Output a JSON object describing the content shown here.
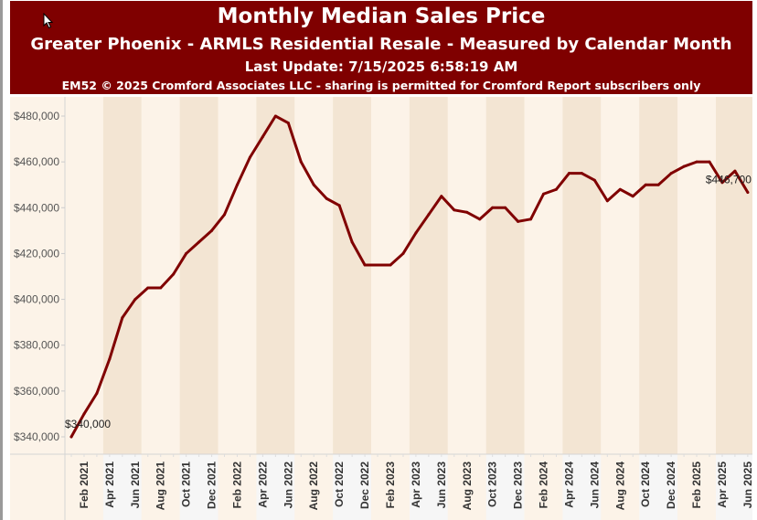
{
  "header": {
    "title": "Monthly Median Sales Price",
    "subtitle": "Greater Phoenix - ARMLS Residential Resale - Measured by Calendar Month",
    "last_update": "Last Update: 7/15/2025 6:58:19 AM",
    "copyright": "EM52 © 2025 Cromford Associates LLC - sharing is permitted for Cromford Report subscribers only"
  },
  "colors": {
    "header_bg": "#7f0000",
    "line": "#800000",
    "band_light": "#fcf3e8",
    "band_dark": "#f3e5d3"
  },
  "chart_data": {
    "type": "line",
    "title": "Monthly Median Sales Price",
    "xlabel": "",
    "ylabel": "",
    "ylim": [
      335000,
      485000
    ],
    "yticks": [
      340000,
      360000,
      380000,
      400000,
      420000,
      440000,
      460000,
      480000
    ],
    "ytick_labels": [
      "$340,000",
      "$360,000",
      "$380,000",
      "$400,000",
      "$420,000",
      "$440,000",
      "$460,000",
      "$480,000"
    ],
    "xtick_labels": [
      "Feb 2021",
      "Apr 2021",
      "Jun 2021",
      "Aug 2021",
      "Oct 2021",
      "Dec 2021",
      "Feb 2022",
      "Apr 2022",
      "Jun 2022",
      "Aug 2022",
      "Oct 2022",
      "Dec 2022",
      "Feb 2023",
      "Apr 2023",
      "Jun 2023",
      "Aug 2023",
      "Oct 2023",
      "Dec 2023",
      "Feb 2024",
      "Apr 2024",
      "Jun 2024",
      "Aug 2024",
      "Oct 2024",
      "Dec 2024",
      "Feb 2025",
      "Apr 2025",
      "Jun 2025"
    ],
    "grid": false,
    "series": [
      {
        "name": "Monthly Median Sales Price",
        "x": [
          "Jan 2021",
          "Feb 2021",
          "Mar 2021",
          "Apr 2021",
          "May 2021",
          "Jun 2021",
          "Jul 2021",
          "Aug 2021",
          "Sep 2021",
          "Oct 2021",
          "Nov 2021",
          "Dec 2021",
          "Jan 2022",
          "Feb 2022",
          "Mar 2022",
          "Apr 2022",
          "May 2022",
          "Jun 2022",
          "Jul 2022",
          "Aug 2022",
          "Sep 2022",
          "Oct 2022",
          "Nov 2022",
          "Dec 2022",
          "Jan 2023",
          "Feb 2023",
          "Mar 2023",
          "Apr 2023",
          "May 2023",
          "Jun 2023",
          "Jul 2023",
          "Aug 2023",
          "Sep 2023",
          "Oct 2023",
          "Nov 2023",
          "Dec 2023",
          "Jan 2024",
          "Feb 2024",
          "Mar 2024",
          "Apr 2024",
          "May 2024",
          "Jun 2024",
          "Jul 2024",
          "Aug 2024",
          "Sep 2024",
          "Oct 2024",
          "Nov 2024",
          "Dec 2024",
          "Jan 2025",
          "Feb 2025",
          "Mar 2025",
          "Apr 2025",
          "May 2025",
          "Jun 2025"
        ],
        "values": [
          340000,
          350000,
          359000,
          374000,
          392000,
          400000,
          405000,
          405000,
          411000,
          420000,
          425000,
          430000,
          437000,
          450000,
          462000,
          471000,
          480000,
          477000,
          460000,
          450000,
          444000,
          441000,
          425000,
          415000,
          415000,
          415000,
          420000,
          429000,
          437000,
          445000,
          439000,
          438000,
          435000,
          440000,
          440000,
          434000,
          435000,
          446000,
          448000,
          455000,
          455000,
          452000,
          443000,
          448000,
          445000,
          450000,
          450000,
          455000,
          458000,
          460000,
          460000,
          451000,
          456000,
          446700
        ]
      }
    ],
    "annotations": [
      {
        "point": "Jan 2021",
        "text": "$340,000"
      },
      {
        "point": "Jun 2025",
        "text": "$446,700"
      }
    ]
  }
}
